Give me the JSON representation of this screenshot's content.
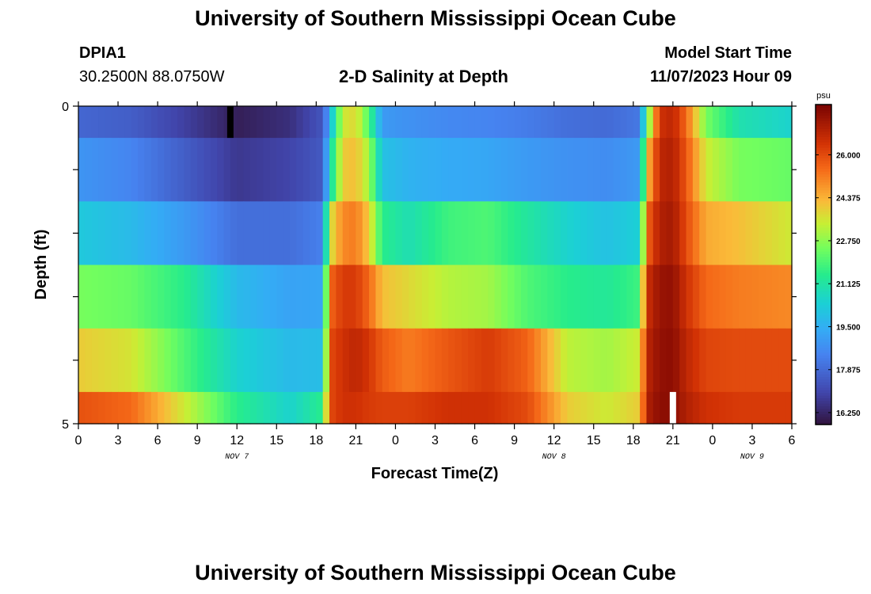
{
  "header": {
    "title": "University of Southern Mississippi Ocean Cube",
    "station": "DPIA1",
    "coordinates": "30.2500N  88.0750W",
    "subtitle": "2-D Salinity at Depth",
    "model_start_label": "Model Start Time",
    "model_start_value": "11/07/2023 Hour 09"
  },
  "footer": {
    "title": "University of Southern Mississippi Ocean Cube"
  },
  "chart_data": {
    "type": "heatmap",
    "title": "2-D Salinity at Depth",
    "xlabel": "Forecast Time(Z)",
    "ylabel": "Depth (ft)",
    "xlim": [
      0,
      54
    ],
    "ylim": [
      0,
      5
    ],
    "x_ticks": [
      0,
      3,
      6,
      9,
      12,
      15,
      18,
      21,
      24,
      27,
      30,
      33,
      36,
      39,
      42,
      45,
      48,
      51,
      54
    ],
    "x_tick_labels": [
      "0",
      "3",
      "6",
      "9",
      "12",
      "15",
      "18",
      "21",
      "0",
      "3",
      "6",
      "9",
      "12",
      "15",
      "18",
      "21",
      "0",
      "3",
      "6"
    ],
    "y_ticks": [
      0,
      5
    ],
    "y_tick_labels": [
      "0",
      "5"
    ],
    "date_labels": [
      {
        "label": "NOV 7",
        "x": 12
      },
      {
        "label": "NOV 8",
        "x": 36
      },
      {
        "label": "NOV 9",
        "x": 51
      }
    ],
    "colorbar": {
      "unit": "psu",
      "min": 15.8,
      "max": 27.9,
      "ticks": [
        16.25,
        17.875,
        19.5,
        21.125,
        22.75,
        24.375,
        26.0
      ],
      "tick_labels": [
        "16.250",
        "17.875",
        "19.500",
        "21.125",
        "22.750",
        "24.375",
        "26.000"
      ]
    },
    "row_bounds": [
      0,
      0.5,
      1.5,
      2.5,
      3.5,
      4.5,
      5
    ],
    "knot_times": [
      0,
      4,
      8,
      12,
      16,
      18.5,
      19,
      20,
      21,
      22,
      23,
      25,
      28,
      31,
      34,
      37,
      40,
      42.5,
      43,
      44,
      45,
      46,
      47.5,
      50,
      54
    ],
    "salinity": [
      [
        17.8,
        17.6,
        16.9,
        16.1,
        16.5,
        17.4,
        19.5,
        23.5,
        23.8,
        22.0,
        19.0,
        18.8,
        18.6,
        18.5,
        18.3,
        18.0,
        17.9,
        18.2,
        22.0,
        26.5,
        26.8,
        25.5,
        22.5,
        21.0,
        20.5
      ],
      [
        18.9,
        18.5,
        17.6,
        16.7,
        17.0,
        17.5,
        20.5,
        24.0,
        24.2,
        23.0,
        20.0,
        19.6,
        19.4,
        19.3,
        19.0,
        18.8,
        18.7,
        19.0,
        24.0,
        26.8,
        27.0,
        25.8,
        23.5,
        22.5,
        22.3
      ],
      [
        20.2,
        19.8,
        19.0,
        18.0,
        18.0,
        18.4,
        23.5,
        25.0,
        25.2,
        24.0,
        21.5,
        20.9,
        21.8,
        22.0,
        21.2,
        20.5,
        20.0,
        20.4,
        25.5,
        27.0,
        27.2,
        26.0,
        24.5,
        24.2,
        23.5
      ],
      [
        22.5,
        22.3,
        21.5,
        19.8,
        19.2,
        19.3,
        25.5,
        26.3,
        26.3,
        25.5,
        24.2,
        23.8,
        23.2,
        23.0,
        22.0,
        21.5,
        21.3,
        21.8,
        26.5,
        27.4,
        27.5,
        26.5,
        25.5,
        25.2,
        25.0
      ],
      [
        24.0,
        23.6,
        22.0,
        20.5,
        19.8,
        19.9,
        26.0,
        26.5,
        26.8,
        26.4,
        25.7,
        25.2,
        25.8,
        26.3,
        25.6,
        23.3,
        23.0,
        23.5,
        26.8,
        27.5,
        27.6,
        26.8,
        26.1,
        26.0,
        26.0
      ],
      [
        25.9,
        25.5,
        23.5,
        21.5,
        20.5,
        21.5,
        26.0,
        26.5,
        26.5,
        26.3,
        26.2,
        26.2,
        26.5,
        26.5,
        26.0,
        24.0,
        23.5,
        24.0,
        27.0,
        27.6,
        27.6,
        27.0,
        26.5,
        26.3,
        26.3
      ]
    ],
    "markers": [
      {
        "x": 11.5,
        "y_from": 0,
        "y_to": 0.5,
        "color": "#000000"
      },
      {
        "x": 45,
        "y_from": 4.5,
        "y_to": 5,
        "color": "#ffffff"
      }
    ]
  }
}
